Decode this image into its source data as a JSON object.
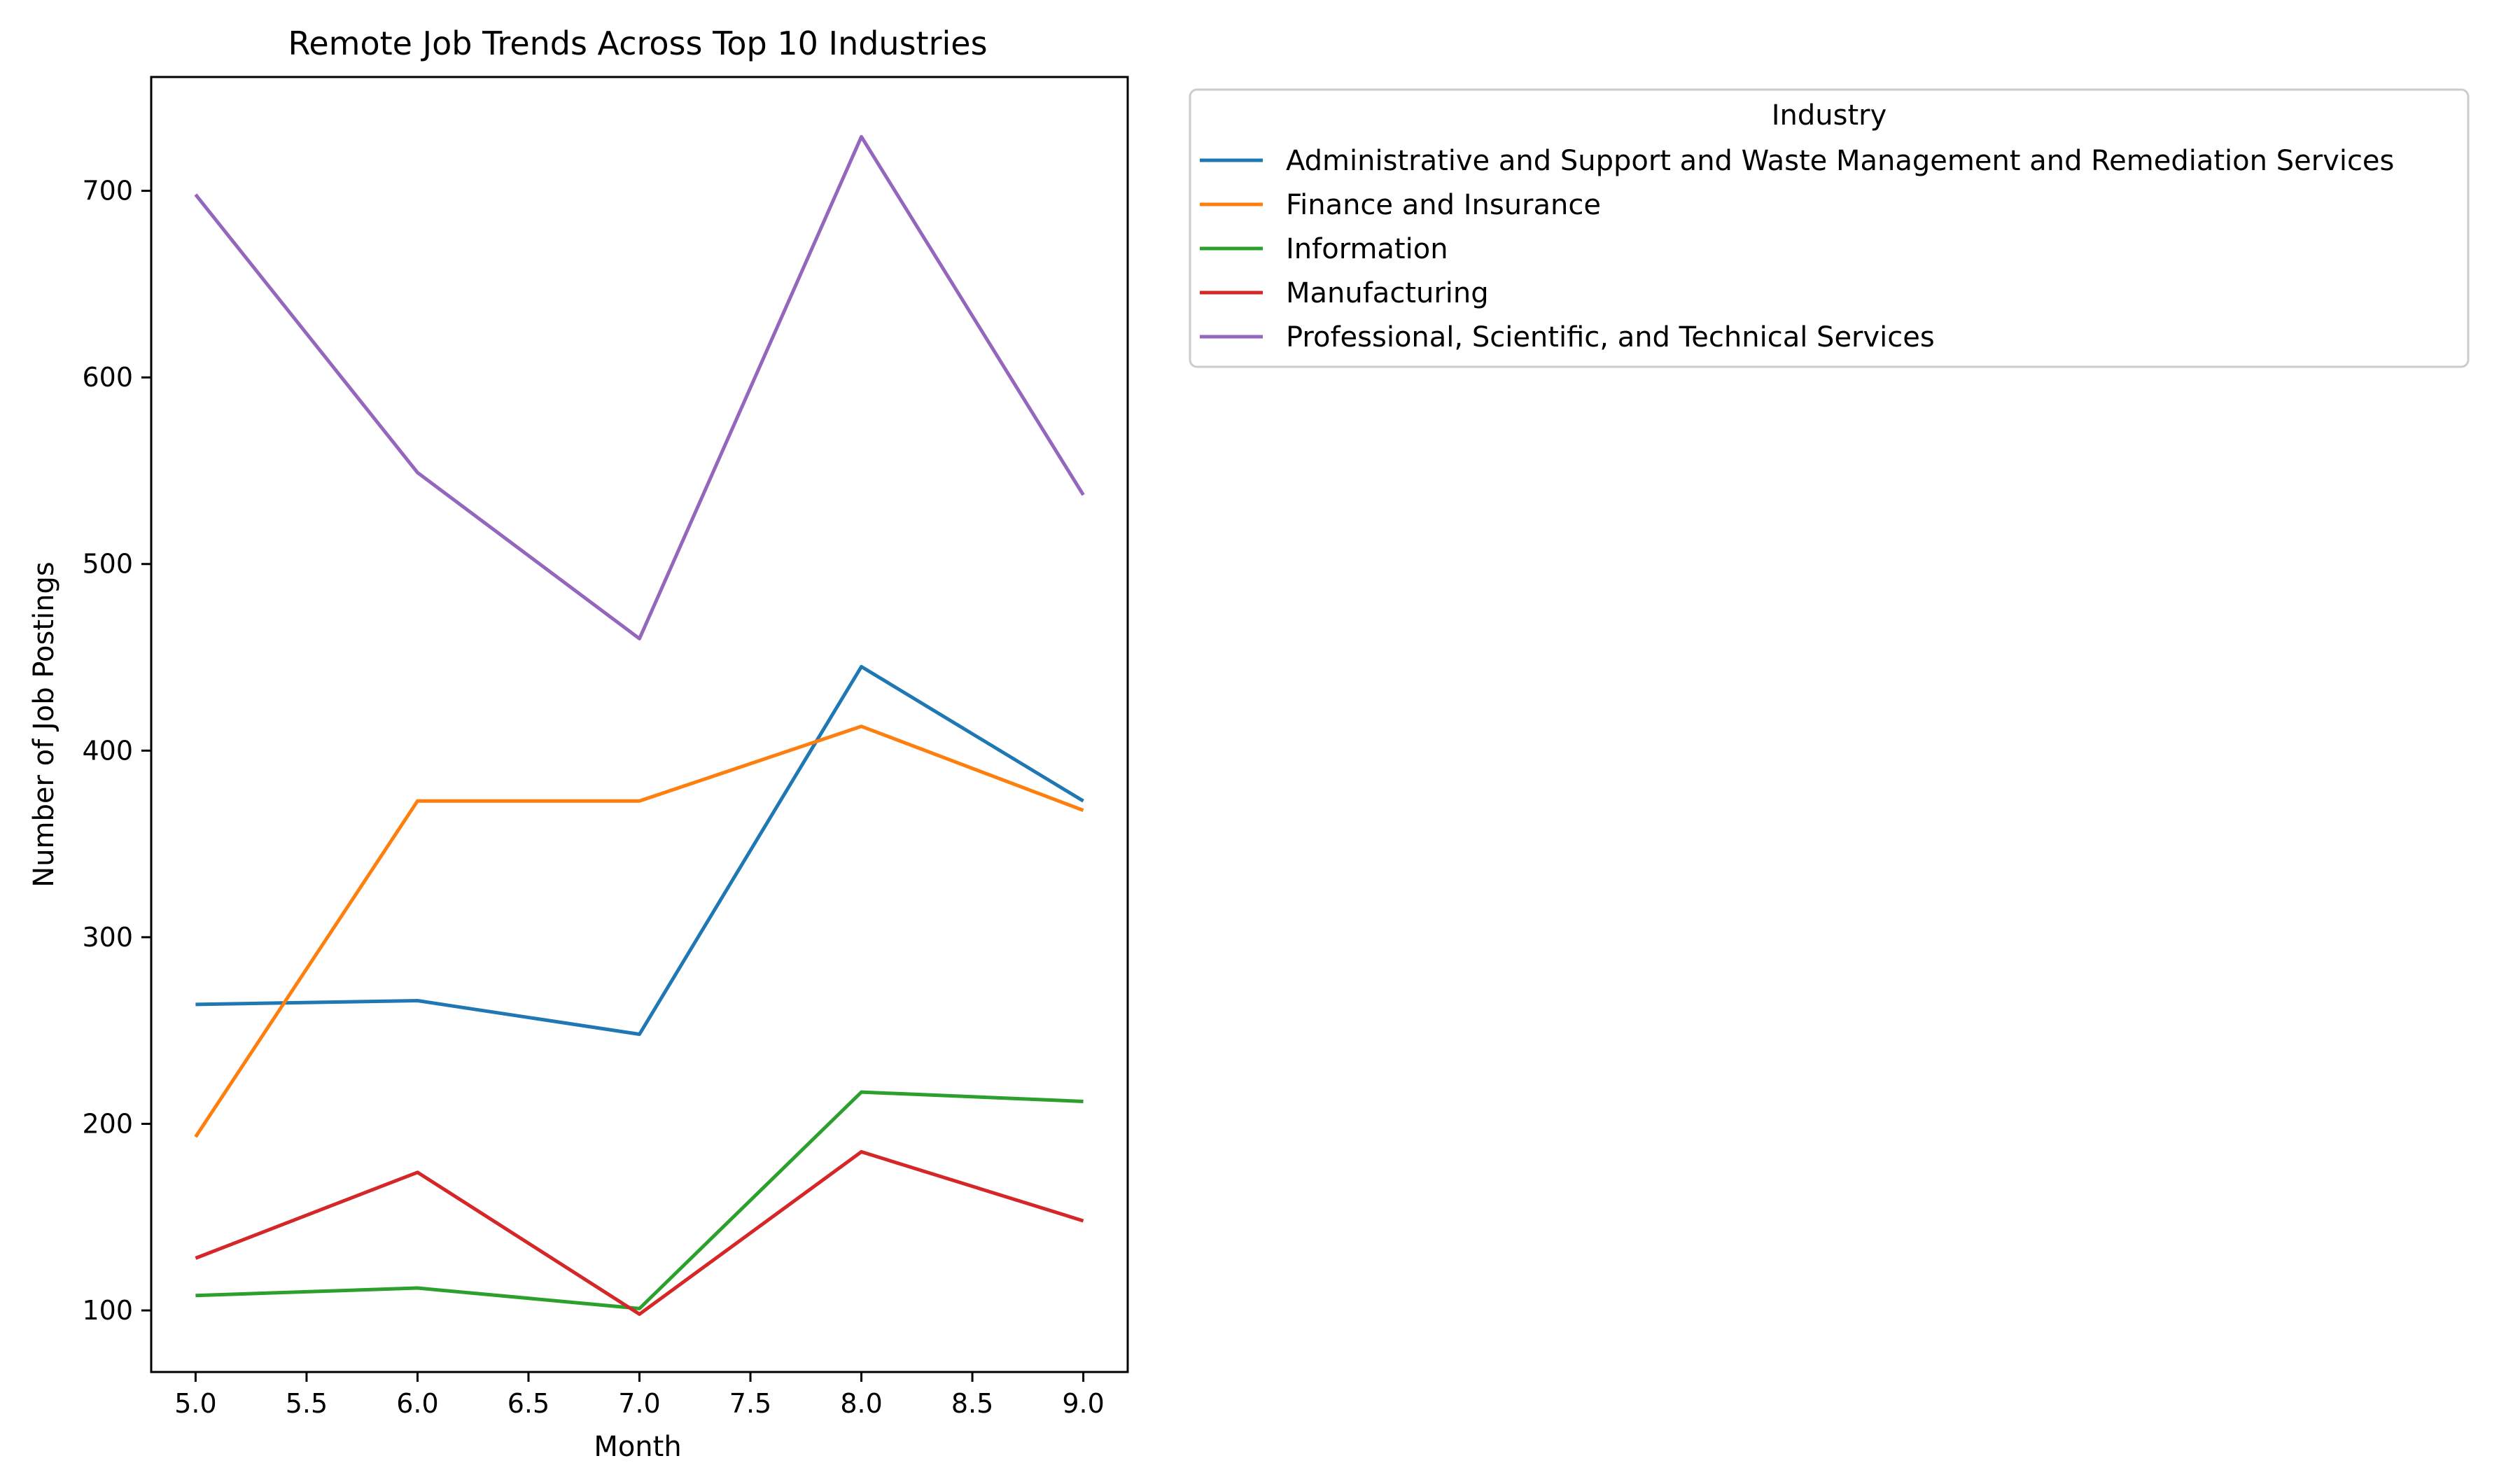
{
  "chart_data": {
    "type": "line",
    "title": "Remote Job Trends Across Top 10 Industries",
    "xlabel": "Month",
    "ylabel": "Number of Job Postings",
    "xlim": [
      4.8,
      9.2
    ],
    "ylim": [
      67,
      761
    ],
    "xticks": [
      "5.0",
      "5.5",
      "6.0",
      "6.5",
      "7.0",
      "7.5",
      "8.0",
      "8.5",
      "9.0"
    ],
    "yticks": [
      "100",
      "200",
      "300",
      "400",
      "500",
      "600",
      "700"
    ],
    "grid": false,
    "legend": {
      "title": "Industry",
      "placement": "outside-right-top"
    },
    "x": [
      5,
      6,
      7,
      8,
      9
    ],
    "series": [
      {
        "name": "Administrative and Support and Waste Management and Remediation Services",
        "color": "#1f77b4",
        "values": [
          264,
          266,
          248,
          445,
          373
        ]
      },
      {
        "name": "Finance and Insurance",
        "color": "#ff7f0e",
        "values": [
          193,
          373,
          373,
          413,
          368
        ]
      },
      {
        "name": "Information",
        "color": "#2ca02c",
        "values": [
          108,
          112,
          101,
          217,
          212
        ]
      },
      {
        "name": "Manufacturing",
        "color": "#d62728",
        "values": [
          128,
          174,
          98,
          185,
          148
        ]
      },
      {
        "name": "Professional, Scientific, and Technical Services",
        "color": "#9467bd",
        "values": [
          698,
          549,
          460,
          729,
          537
        ]
      }
    ]
  }
}
